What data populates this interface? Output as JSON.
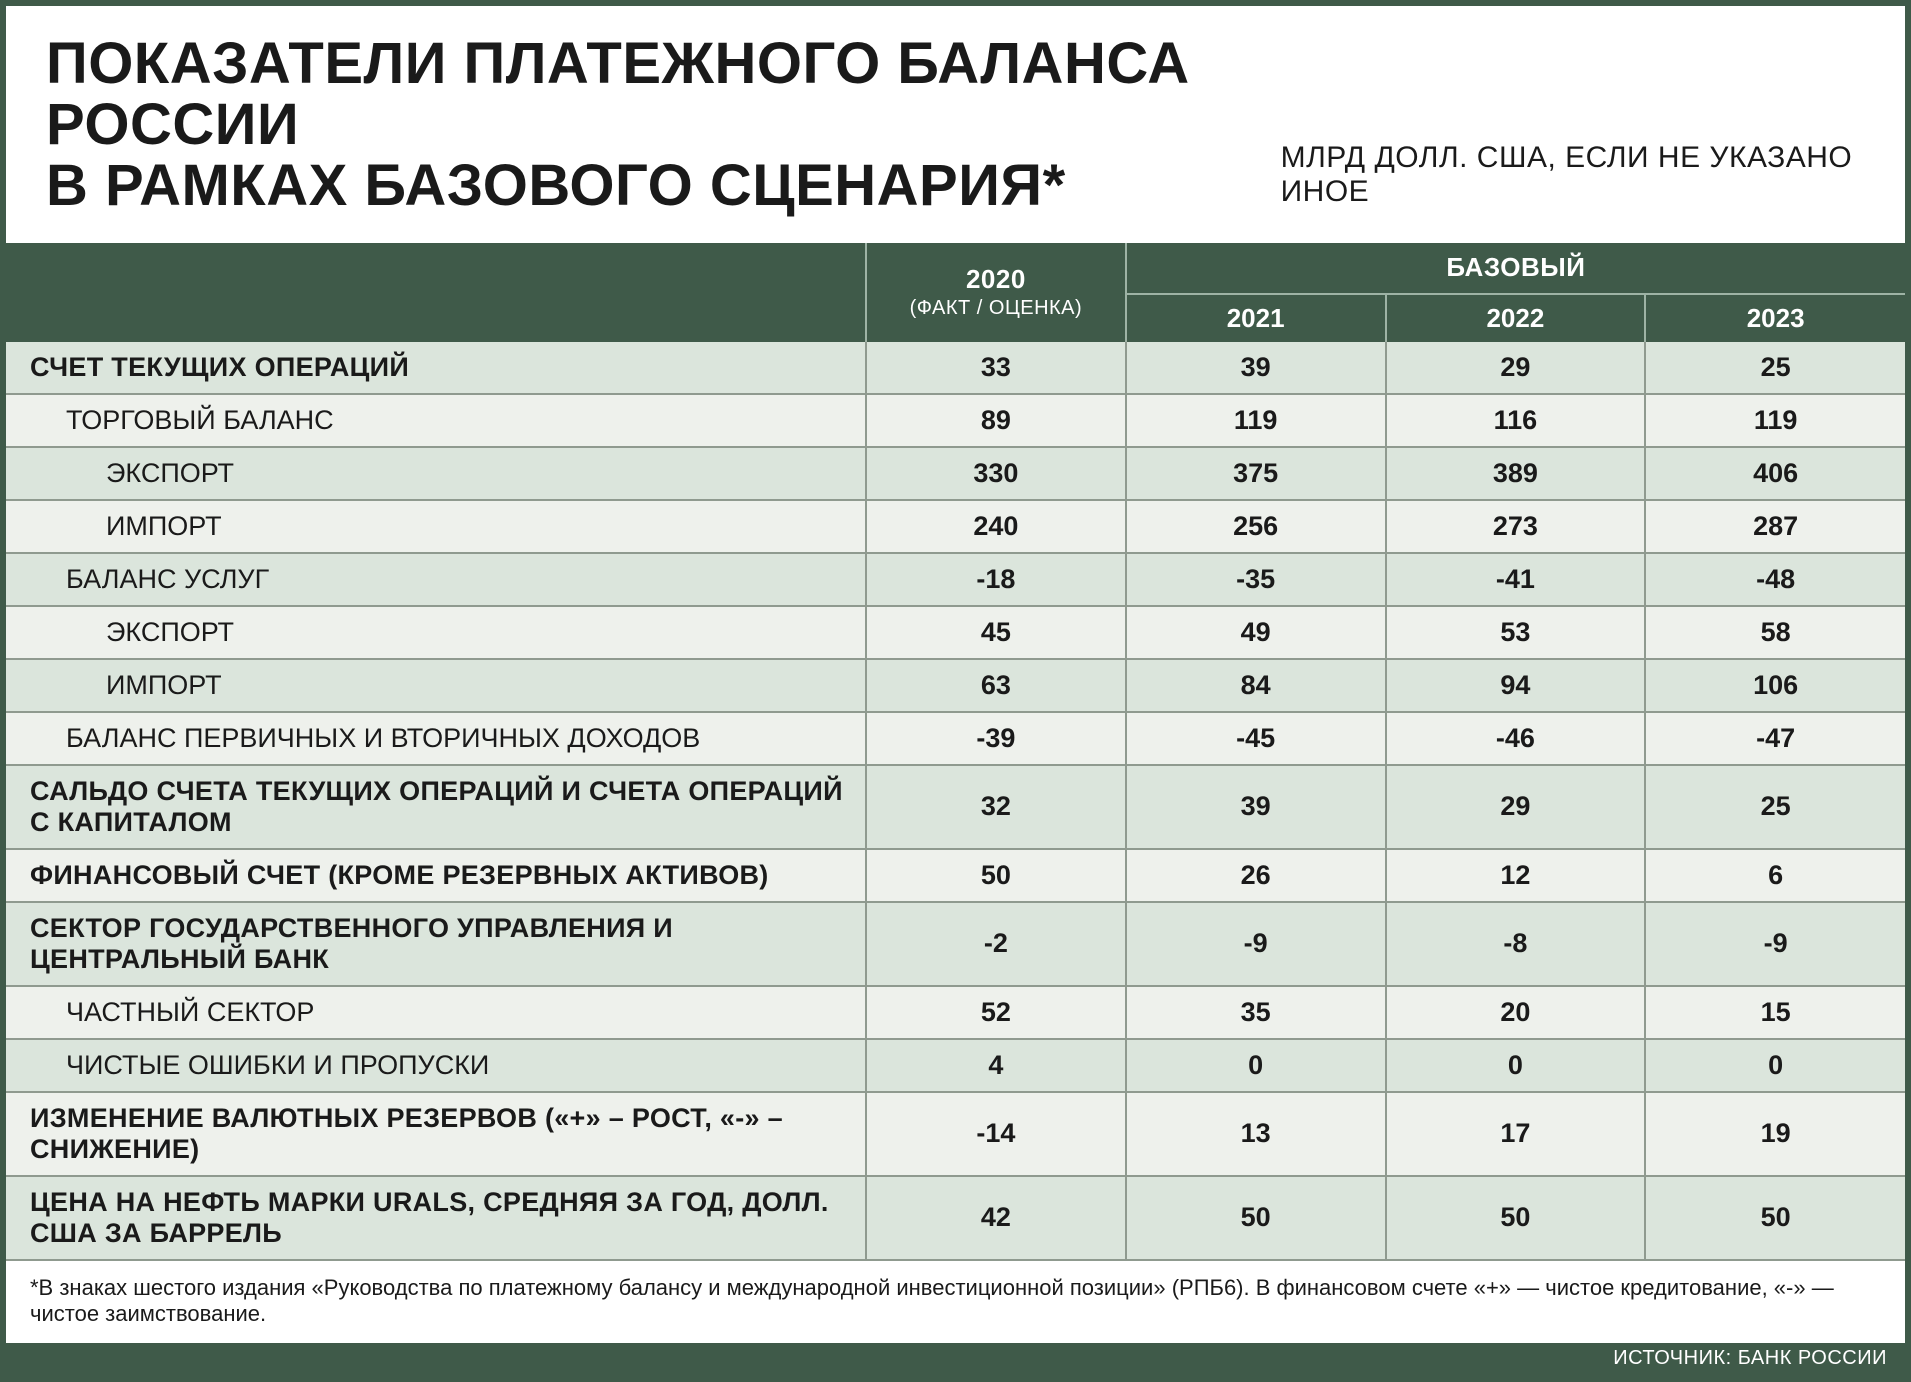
{
  "colors": {
    "frame": "#3f5a49",
    "header_bg": "#3f5a49",
    "header_text": "#ffffff",
    "row_even": "#dbe5dc",
    "row_odd": "#eef1ec",
    "border": "#8f9a8f",
    "text": "#1a1a1a"
  },
  "title_line1": "ПОКАЗАТЕЛИ ПЛАТЕЖНОГО БАЛАНСА РОССИИ",
  "title_line2": "В РАМКАХ БАЗОВОГО СЦЕНАРИЯ*",
  "units": "МЛРД ДОЛЛ. США, ЕСЛИ НЕ УКАЗАНО ИНОЕ",
  "col_2020": "2020",
  "col_2020_sub": "(ФАКТ / ОЦЕНКА)",
  "col_base": "БАЗОВЫЙ",
  "col_2021": "2021",
  "col_2022": "2022",
  "col_2023": "2023",
  "rows": [
    {
      "level": 0,
      "label": "СЧЕТ ТЕКУЩИХ ОПЕРАЦИЙ",
      "v": [
        "33",
        "39",
        "29",
        "25"
      ]
    },
    {
      "level": 1,
      "label": "ТОРГОВЫЙ БАЛАНС",
      "v": [
        "89",
        "119",
        "116",
        "119"
      ]
    },
    {
      "level": 2,
      "label": "ЭКСПОРТ",
      "v": [
        "330",
        "375",
        "389",
        "406"
      ]
    },
    {
      "level": 2,
      "label": "ИМПОРТ",
      "v": [
        "240",
        "256",
        "273",
        "287"
      ]
    },
    {
      "level": 1,
      "label": "БАЛАНС УСЛУГ",
      "v": [
        "-18",
        "-35",
        "-41",
        "-48"
      ]
    },
    {
      "level": 2,
      "label": "ЭКСПОРТ",
      "v": [
        "45",
        "49",
        "53",
        "58"
      ]
    },
    {
      "level": 2,
      "label": "ИМПОРТ",
      "v": [
        "63",
        "84",
        "94",
        "106"
      ]
    },
    {
      "level": 1,
      "label": "БАЛАНС ПЕРВИЧНЫХ И ВТОРИЧНЫХ ДОХОДОВ",
      "v": [
        "-39",
        "-45",
        "-46",
        "-47"
      ]
    },
    {
      "level": 0,
      "label": "САЛЬДО СЧЕТА ТЕКУЩИХ ОПЕРАЦИЙ И СЧЕТА ОПЕРАЦИЙ С КАПИТАЛОМ",
      "v": [
        "32",
        "39",
        "29",
        "25"
      ]
    },
    {
      "level": 0,
      "label": "ФИНАНСОВЫЙ СЧЕТ (КРОМЕ РЕЗЕРВНЫХ АКТИВОВ)",
      "v": [
        "50",
        "26",
        "12",
        "6"
      ]
    },
    {
      "level": 0,
      "label": "СЕКТОР ГОСУДАРСТВЕННОГО УПРАВЛЕНИЯ И ЦЕНТРАЛЬНЫЙ БАНК",
      "v": [
        "-2",
        "-9",
        "-8",
        "-9"
      ]
    },
    {
      "level": 1,
      "label": "ЧАСТНЫЙ СЕКТОР",
      "v": [
        "52",
        "35",
        "20",
        "15"
      ]
    },
    {
      "level": 1,
      "label": "ЧИСТЫЕ ОШИБКИ И ПРОПУСКИ",
      "v": [
        "4",
        "0",
        "0",
        "0"
      ]
    },
    {
      "level": 0,
      "label": "ИЗМЕНЕНИЕ ВАЛЮТНЫХ РЕЗЕРВОВ («+» – РОСТ, «-» – СНИЖЕНИЕ)",
      "v": [
        "-14",
        "13",
        "17",
        "19"
      ]
    },
    {
      "level": 0,
      "label": "ЦЕНА НА НЕФТЬ МАРКИ URALS, СРЕДНЯЯ ЗА ГОД, ДОЛЛ. США ЗА БАРРЕЛЬ",
      "v": [
        "42",
        "50",
        "50",
        "50"
      ]
    }
  ],
  "footnote": "*В знаках шестого издания «Руководства по платежному балансу и международной инвестиционной позиции» (РПБ6). В финансовом счете «+» — чистое кредитование, «-» — чистое заимствование.",
  "source": "ИСТОЧНИК: БАНК РОССИИ"
}
